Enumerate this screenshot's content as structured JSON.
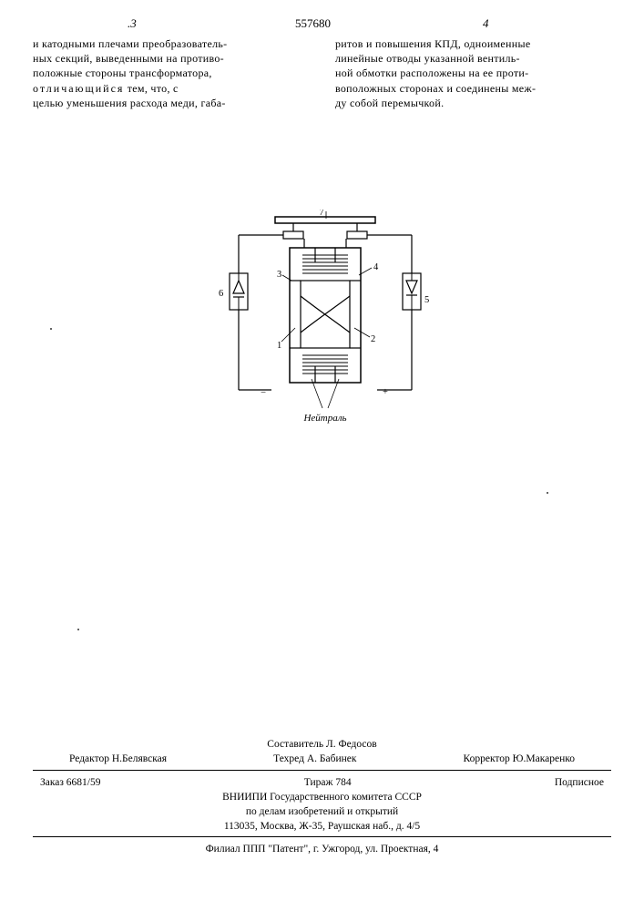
{
  "header": {
    "page_left": ".3",
    "doc_number": "557680",
    "page_right": "4"
  },
  "text": {
    "left_col": "и катодными плечами преобразователь-\nных секций, выведенными на противо-\nположные стороны трансформатора,\n<span class=\"spaced\">отличающийся</span> тем, что, с\nцелью уменьшения расхода меди, габа-",
    "right_col": "ритов и повышения КПД, одноименные\nлинейные отводы указанной вентиль-\nной обмотки расположены на ее проти-\nвоположных сторонах и соединены меж-\nду собой перемычкой."
  },
  "figure": {
    "labels": {
      "n1": "1",
      "n2": "2",
      "n3": "3",
      "n4": "4",
      "n5": "5",
      "n6": "6",
      "n7": "7"
    },
    "minus": "−",
    "plus": "+",
    "neutral": "Нейтраль",
    "stroke": "#000000",
    "fill": "none"
  },
  "footer": {
    "compiler": "Составитель Л. Федосов",
    "editor": "Редактор Н.Белявская",
    "techred": "Техред А. Бабинек",
    "corrector": "Корректор Ю.Макаренко",
    "order": "Заказ 6681/59",
    "tirazh": "Тираж 784",
    "subscr": "Подписное",
    "org1": "ВНИИПИ Государственного комитета СССР",
    "org2": "по делам изобретений и открытий",
    "addr": "113035, Москва, Ж-35, Раушская наб., д. 4/5",
    "filial": "Филиал ППП \"Патент\", г. Ужгород, ул. Проектная, 4"
  }
}
